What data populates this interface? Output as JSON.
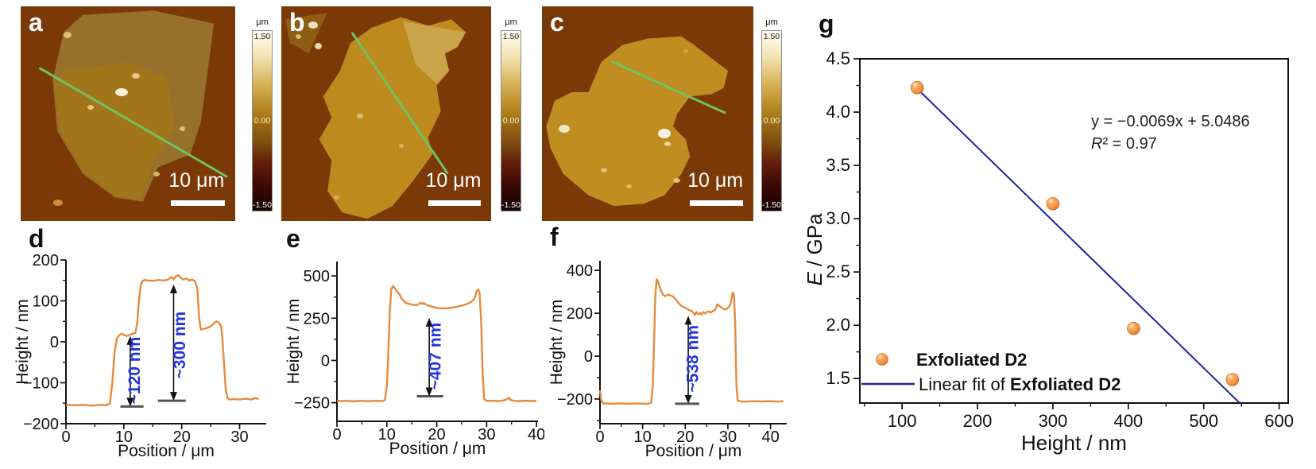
{
  "afm": {
    "panels": [
      {
        "label": "a",
        "scale_bar": "10 μm",
        "colorbar": {
          "unit": "μm",
          "max": "1.50",
          "mid": "0.00",
          "min": "-1.50"
        }
      },
      {
        "label": "b",
        "scale_bar": "10 μm",
        "colorbar": {
          "unit": "μm",
          "max": "1.50",
          "mid": "0.00",
          "min": "-1.50"
        }
      },
      {
        "label": "c",
        "scale_bar": "10 μm",
        "colorbar": {
          "unit": "μm",
          "max": "1.50",
          "mid": "0.00",
          "min": "-1.50"
        }
      }
    ]
  },
  "colors": {
    "profile_line": "#E8893B",
    "annotation": "#2336DF",
    "fit_line": "#22229B",
    "marker": "#F0913E",
    "scan_line": "#70C263",
    "afm_background": "#7A3907"
  },
  "chart_data": [
    {
      "panel_label": "d",
      "type": "line",
      "xlabel": "Position / μm",
      "ylabel": "Height / nm",
      "xlim": [
        0,
        34.6
      ],
      "ylim": [
        -200,
        200
      ],
      "xticks": [
        0,
        10,
        20,
        30
      ],
      "yticks": [
        -200,
        -100,
        0,
        100,
        200
      ],
      "line_color": "#E8893B",
      "points": [
        [
          0,
          -154
        ],
        [
          1.5,
          -155
        ],
        [
          3,
          -154
        ],
        [
          4.5,
          -156
        ],
        [
          6,
          -154
        ],
        [
          7,
          -155
        ],
        [
          7.6,
          -150
        ],
        [
          8,
          -100
        ],
        [
          8.4,
          -25
        ],
        [
          8.8,
          8
        ],
        [
          9.2,
          16
        ],
        [
          9.6,
          20
        ],
        [
          10,
          17
        ],
        [
          10.5,
          14
        ],
        [
          11,
          17
        ],
        [
          11.5,
          20
        ],
        [
          12,
          22
        ],
        [
          12.3,
          45
        ],
        [
          12.6,
          100
        ],
        [
          12.9,
          138
        ],
        [
          13.2,
          149
        ],
        [
          13.6,
          151
        ],
        [
          14,
          150
        ],
        [
          15,
          149
        ],
        [
          16,
          151
        ],
        [
          17,
          150
        ],
        [
          17.6,
          152
        ],
        [
          18.2,
          158
        ],
        [
          18.6,
          153
        ],
        [
          19,
          160
        ],
        [
          19.4,
          163
        ],
        [
          19.8,
          157
        ],
        [
          20.3,
          152
        ],
        [
          20.8,
          155
        ],
        [
          21.3,
          150
        ],
        [
          21.8,
          152
        ],
        [
          22.3,
          148
        ],
        [
          22.7,
          130
        ],
        [
          23,
          60
        ],
        [
          23.3,
          30
        ],
        [
          23.7,
          31
        ],
        [
          24.2,
          33
        ],
        [
          24.7,
          36
        ],
        [
          25.2,
          40
        ],
        [
          25.6,
          46
        ],
        [
          26,
          50
        ],
        [
          26.4,
          47
        ],
        [
          26.8,
          38
        ],
        [
          27,
          15
        ],
        [
          27.3,
          -50
        ],
        [
          27.6,
          -115
        ],
        [
          27.9,
          -137
        ],
        [
          28.3,
          -141
        ],
        [
          29,
          -140
        ],
        [
          30,
          -141
        ],
        [
          31,
          -139
        ],
        [
          32,
          -141
        ],
        [
          32.7,
          -137
        ],
        [
          33.3,
          -140
        ]
      ],
      "annotations": [
        {
          "text": "~120 nm",
          "arrow_x": 11.1,
          "y_from": -158,
          "y_to": 14,
          "bar_x1": 9.4,
          "bar_x2": 13.4,
          "label_x": 12.8,
          "label_y": -70
        },
        {
          "text": "~300 nm",
          "arrow_x": 18.6,
          "y_from": -144,
          "y_to": 140,
          "bar_x1": 15.9,
          "bar_x2": 20.7,
          "label_x": 20.6,
          "label_y": -8
        }
      ]
    },
    {
      "panel_label": "e",
      "type": "line",
      "xlabel": "Position / μm",
      "ylabel": "Height / nm",
      "xlim": [
        0,
        40.3
      ],
      "ylim": [
        -360,
        585
      ],
      "xticks": [
        0,
        10,
        20,
        30,
        40
      ],
      "yticks": [
        -250,
        0,
        250,
        500
      ],
      "line_color": "#E8893B",
      "points": [
        [
          0,
          -238
        ],
        [
          1,
          -240
        ],
        [
          2,
          -239
        ],
        [
          3,
          -241
        ],
        [
          4,
          -240
        ],
        [
          5,
          -239
        ],
        [
          6,
          -241
        ],
        [
          7,
          -240
        ],
        [
          8,
          -239
        ],
        [
          9,
          -240
        ],
        [
          9.6,
          -235
        ],
        [
          10,
          -150
        ],
        [
          10.3,
          50
        ],
        [
          10.6,
          290
        ],
        [
          10.9,
          420
        ],
        [
          11.2,
          440
        ],
        [
          11.6,
          427
        ],
        [
          12,
          408
        ],
        [
          12.5,
          392
        ],
        [
          13,
          365
        ],
        [
          13.5,
          348
        ],
        [
          14,
          338
        ],
        [
          15,
          330
        ],
        [
          16,
          327
        ],
        [
          16.4,
          333
        ],
        [
          16.8,
          342
        ],
        [
          17.1,
          334
        ],
        [
          17.4,
          339
        ],
        [
          17.8,
          331
        ],
        [
          18.4,
          324
        ],
        [
          19,
          318
        ],
        [
          20,
          311
        ],
        [
          21,
          307
        ],
        [
          22,
          309
        ],
        [
          23,
          312
        ],
        [
          24,
          317
        ],
        [
          25,
          324
        ],
        [
          26,
          333
        ],
        [
          26.6,
          341
        ],
        [
          27.2,
          353
        ],
        [
          27.6,
          369
        ],
        [
          28,
          409
        ],
        [
          28.3,
          421
        ],
        [
          28.6,
          398
        ],
        [
          28.9,
          240
        ],
        [
          29.2,
          -70
        ],
        [
          29.5,
          -228
        ],
        [
          30,
          -239
        ],
        [
          31,
          -238
        ],
        [
          32,
          -240
        ],
        [
          33,
          -239
        ],
        [
          34,
          -231
        ],
        [
          34.4,
          -221
        ],
        [
          34.8,
          -233
        ],
        [
          35.5,
          -239
        ],
        [
          36.5,
          -240
        ],
        [
          38,
          -238
        ],
        [
          39,
          -240
        ],
        [
          40,
          -239
        ]
      ],
      "annotations": [
        {
          "text": "~407 nm",
          "arrow_x": 18.5,
          "y_from": -212,
          "y_to": 252,
          "bar_x1": 16,
          "bar_x2": 21.3,
          "label_x": 20.8,
          "label_y": 25
        }
      ]
    },
    {
      "panel_label": "f",
      "type": "line",
      "xlabel": "Position / μm",
      "ylabel": "Height / nm",
      "xlim": [
        0,
        43.8
      ],
      "ylim": [
        -315,
        445
      ],
      "xticks": [
        0,
        10,
        20,
        30,
        40
      ],
      "yticks": [
        -200,
        0,
        200,
        400
      ],
      "line_color": "#E8893B",
      "points": [
        [
          0,
          -160
        ],
        [
          0.3,
          -206
        ],
        [
          0.7,
          -221
        ],
        [
          1.5,
          -220
        ],
        [
          3,
          -222
        ],
        [
          5,
          -220
        ],
        [
          7,
          -222
        ],
        [
          9,
          -221
        ],
        [
          11,
          -222
        ],
        [
          12,
          -218
        ],
        [
          12.4,
          -140
        ],
        [
          12.7,
          80
        ],
        [
          13,
          290
        ],
        [
          13.3,
          358
        ],
        [
          13.6,
          347
        ],
        [
          14,
          324
        ],
        [
          14.4,
          300
        ],
        [
          14.8,
          287
        ],
        [
          15.2,
          280
        ],
        [
          15.6,
          283
        ],
        [
          16,
          287
        ],
        [
          16.5,
          283
        ],
        [
          17,
          280
        ],
        [
          17.5,
          271
        ],
        [
          18,
          259
        ],
        [
          18.5,
          245
        ],
        [
          19,
          236
        ],
        [
          19.5,
          230
        ],
        [
          20,
          226
        ],
        [
          20.5,
          220
        ],
        [
          21,
          214
        ],
        [
          21.5,
          211
        ],
        [
          22,
          200
        ],
        [
          22.3,
          192
        ],
        [
          22.6,
          206
        ],
        [
          23,
          195
        ],
        [
          23.4,
          201
        ],
        [
          23.8,
          195
        ],
        [
          24.2,
          206
        ],
        [
          24.6,
          199
        ],
        [
          25,
          206
        ],
        [
          25.5,
          208
        ],
        [
          26,
          203
        ],
        [
          26.5,
          211
        ],
        [
          27,
          216
        ],
        [
          27.5,
          241
        ],
        [
          28,
          234
        ],
        [
          28.5,
          226
        ],
        [
          29,
          220
        ],
        [
          29.5,
          217
        ],
        [
          30,
          226
        ],
        [
          30.5,
          236
        ],
        [
          30.8,
          262
        ],
        [
          31.1,
          298
        ],
        [
          31.4,
          285
        ],
        [
          31.7,
          160
        ],
        [
          32,
          -140
        ],
        [
          32.3,
          -207
        ],
        [
          33,
          -211
        ],
        [
          34,
          -212
        ],
        [
          36,
          -210
        ],
        [
          38,
          -211
        ],
        [
          40,
          -210
        ],
        [
          42,
          -212
        ],
        [
          43,
          -210
        ]
      ],
      "annotations": [
        {
          "text": "~538 nm",
          "arrow_x": 20.7,
          "y_from": -222,
          "y_to": 188,
          "bar_x1": 17.6,
          "bar_x2": 23.3,
          "label_x": 23,
          "label_y": -12
        }
      ]
    },
    {
      "panel_label": "g",
      "type": "scatter",
      "xlabel": "Height / nm",
      "ylabel": "E / GPa",
      "ylabel_italic_first": true,
      "xlim": [
        44,
        612
      ],
      "ylim": [
        1.27,
        4.5
      ],
      "xticks": [
        100,
        200,
        300,
        400,
        500,
        600
      ],
      "yticks": [
        1.5,
        2.0,
        2.5,
        3.0,
        3.5,
        4.0,
        4.5
      ],
      "point_color": "#F0913E",
      "points": [
        [
          120,
          4.23
        ],
        [
          300,
          3.14
        ],
        [
          407,
          1.97
        ],
        [
          538,
          1.49
        ]
      ],
      "fit": {
        "slope": -0.0069,
        "intercept": 5.0486,
        "x_start": 118,
        "x_end": 547,
        "color": "#22229B",
        "equation": "y = −0.0069x + 5.0486",
        "r_squared": "R² = 0.97"
      },
      "legend": [
        {
          "marker": "point",
          "prefix": "",
          "bold": "Exfoliated D2"
        },
        {
          "marker": "line",
          "prefix": "Linear fit of ",
          "bold": "Exfoliated D2"
        }
      ]
    }
  ]
}
